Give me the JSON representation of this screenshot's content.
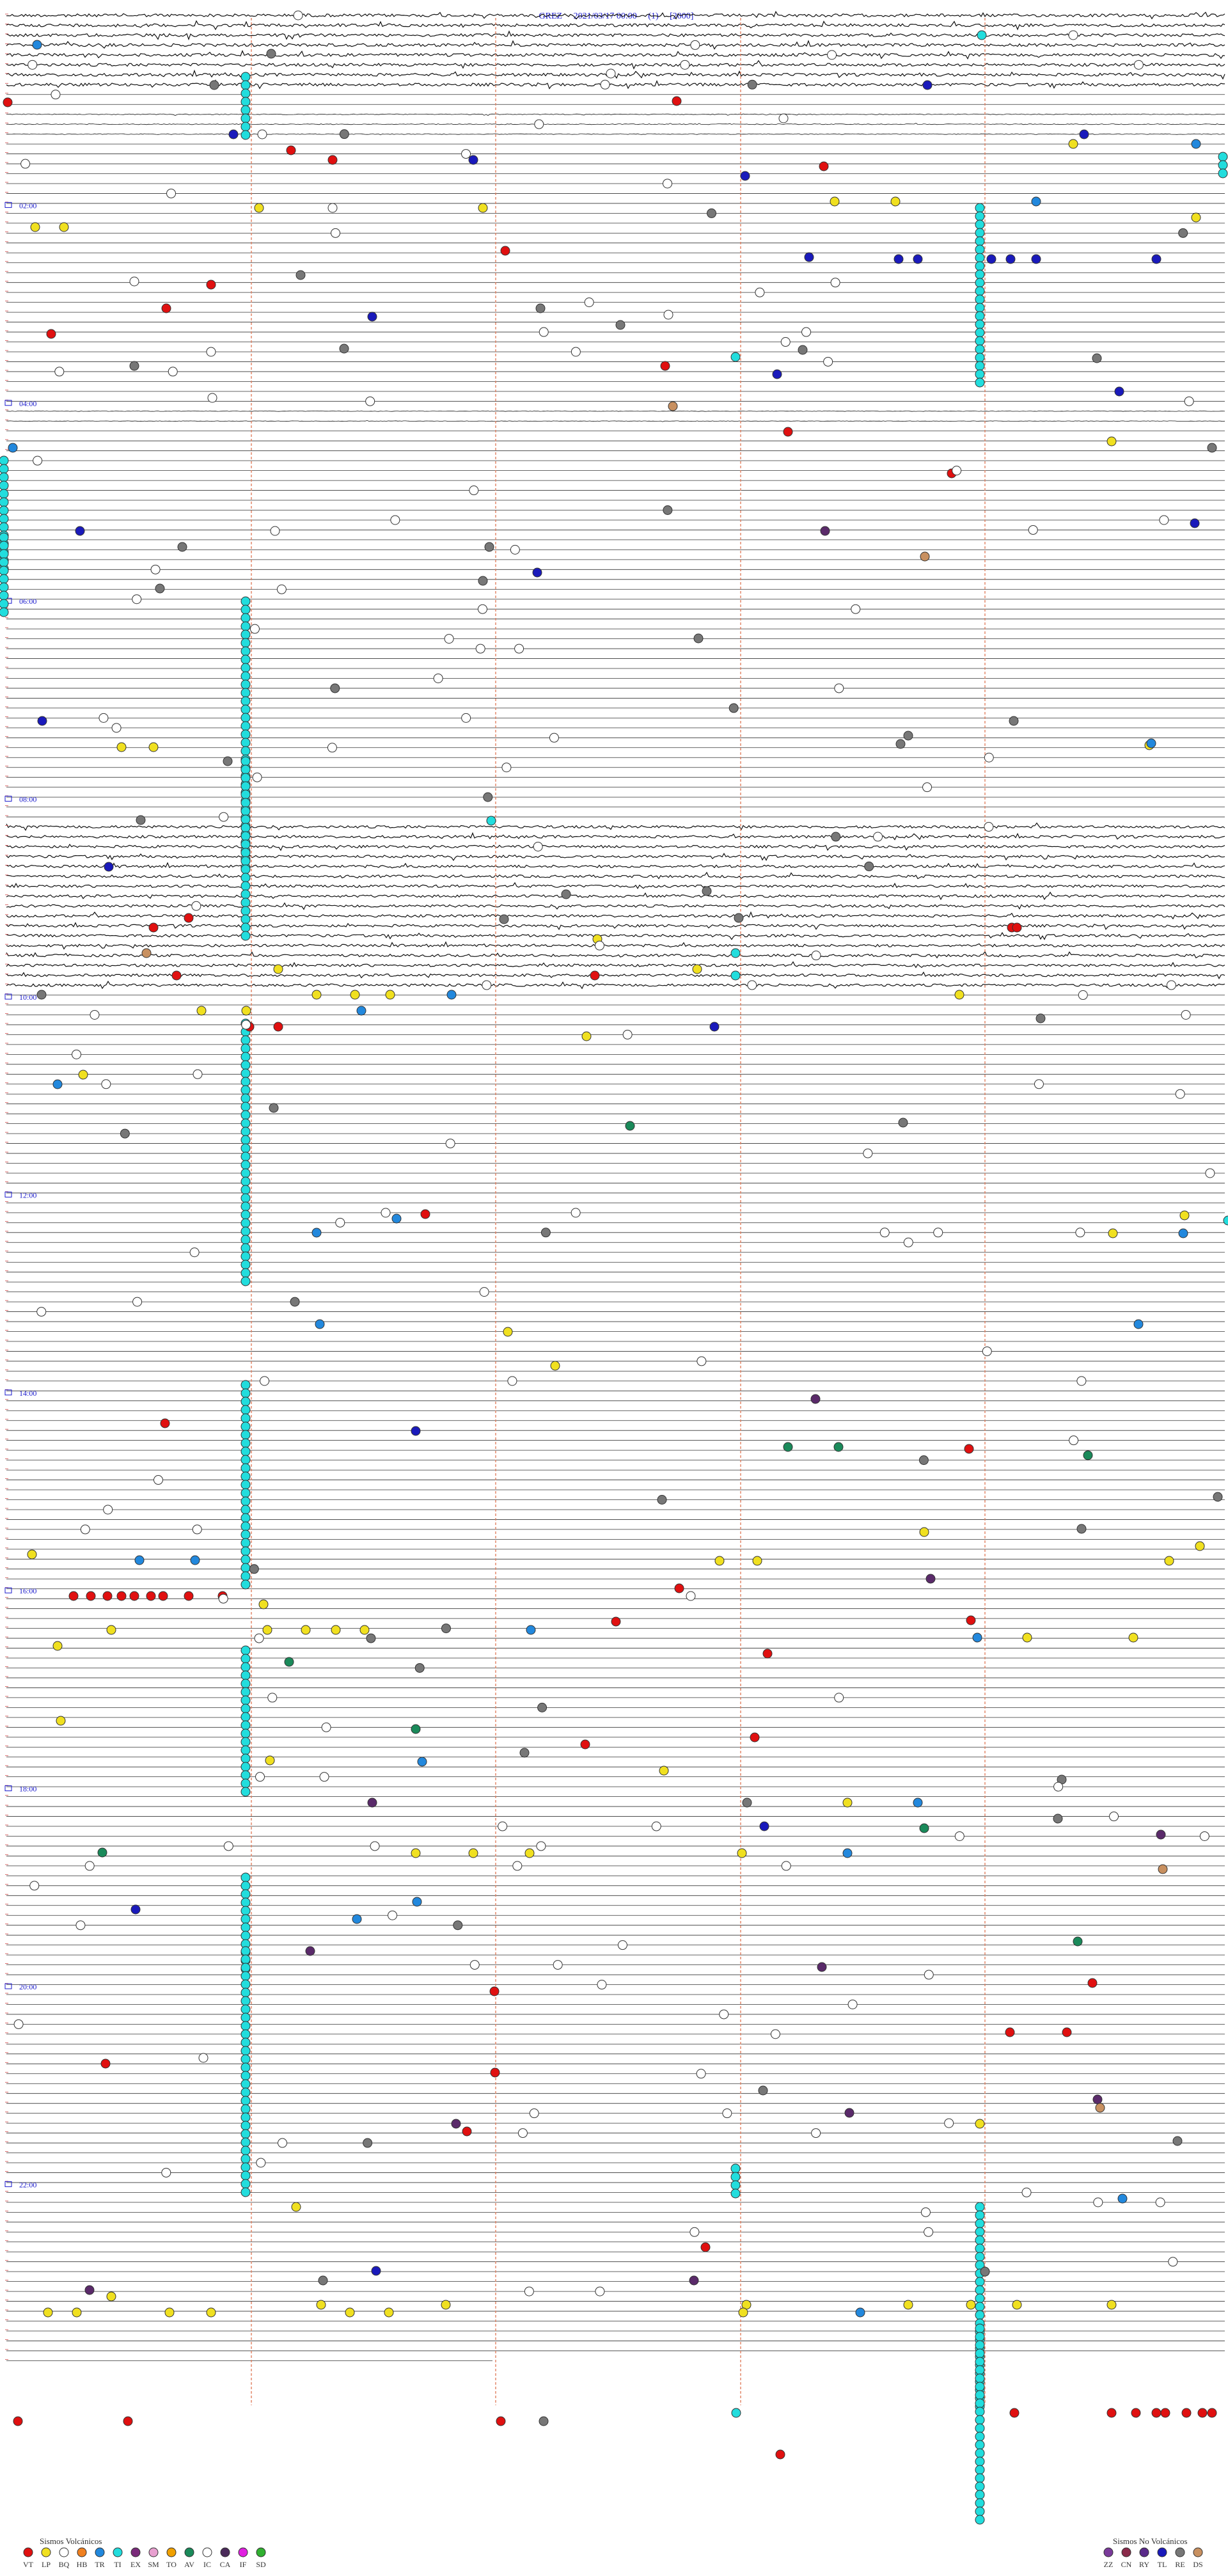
{
  "header": {
    "station": "GREZ",
    "datetime": "2021/03/17 00:00",
    "channel": "(1)",
    "scale": "[2000]"
  },
  "hour_labels": [
    "02:00",
    "04:00",
    "06:00",
    "08:00",
    "10:00",
    "12:00",
    "14:00",
    "16:00",
    "18:00",
    "20:00",
    "22:00"
  ],
  "legend": {
    "volcanic_title": "Sismos Volcánicos",
    "volcanic": [
      {
        "code": "VT",
        "color": "#e01010"
      },
      {
        "code": "LP",
        "color": "#f0e020"
      },
      {
        "code": "BQ",
        "color": "#ffffff"
      },
      {
        "code": "HB",
        "color": "#f08020"
      },
      {
        "code": "TR",
        "color": "#2288dd"
      },
      {
        "code": "TI",
        "color": "#22dddd"
      },
      {
        "code": "EX",
        "color": "#7a2a7a"
      },
      {
        "code": "SM",
        "color": "#e8a0d0"
      },
      {
        "code": "TO",
        "color": "#f0a000"
      },
      {
        "code": "AV",
        "color": "#1a8a5a"
      },
      {
        "code": "IC",
        "color": "#ffffff"
      },
      {
        "code": "CA",
        "color": "#4a2a5a"
      },
      {
        "code": "IF",
        "color": "#e020e0"
      },
      {
        "code": "SD",
        "color": "#30b030"
      }
    ],
    "nonvolcanic_title": "Sismos No Volcánicos",
    "nonvolcanic": [
      {
        "code": "ZZ",
        "color": "#7a3a9a"
      },
      {
        "code": "CN",
        "color": "#8a2a4a"
      },
      {
        "code": "RY",
        "color": "#5a2a8a"
      },
      {
        "code": "TL",
        "color": "#1a1abb"
      },
      {
        "code": "RE",
        "color": "#777777"
      },
      {
        "code": "DS",
        "color": "#c89060"
      }
    ]
  }
}
